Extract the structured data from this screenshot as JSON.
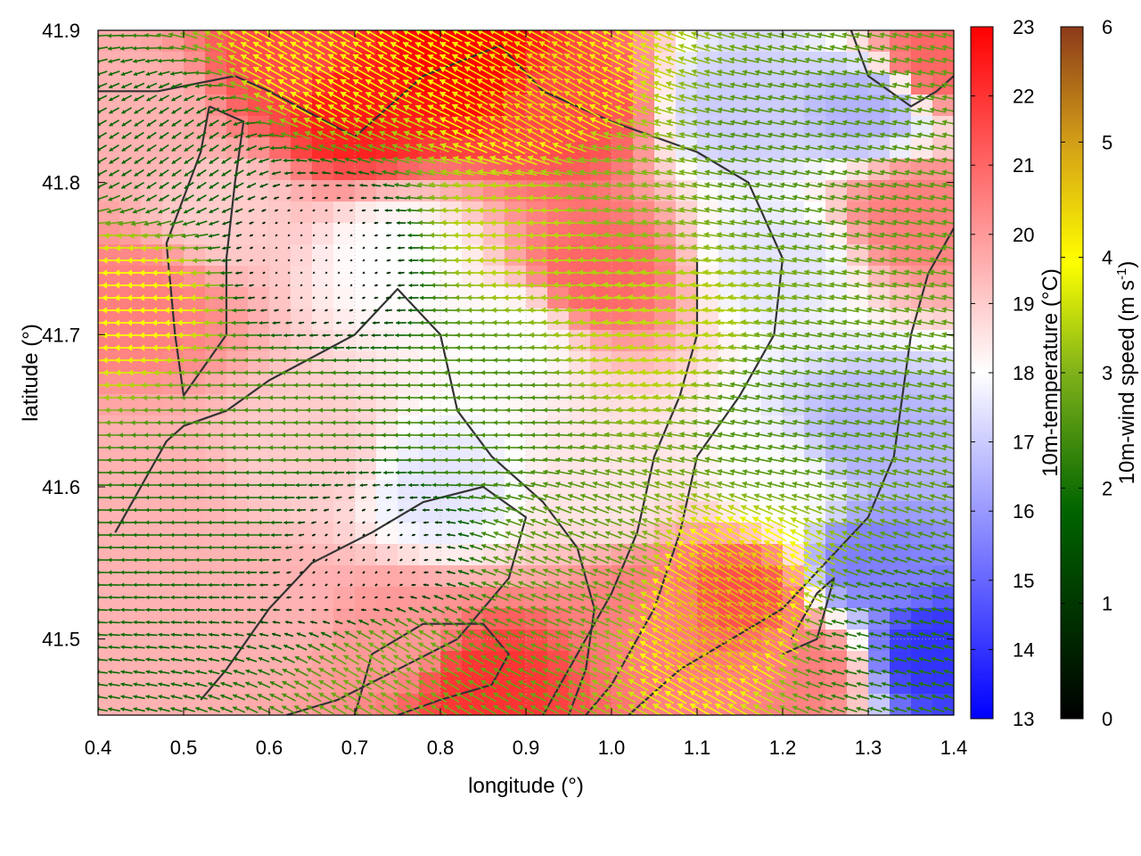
{
  "chart_data": {
    "type": "heatmap",
    "xlabel": "longitude (°)",
    "ylabel": "latitude (°)",
    "xlim": [
      0.4,
      1.4
    ],
    "ylim": [
      41.45,
      41.9
    ],
    "x_ticks": [
      "0.4",
      "0.5",
      "0.6",
      "0.7",
      "0.8",
      "0.9",
      "1.0",
      "1.1",
      "1.2",
      "1.3",
      "1.4"
    ],
    "y_ticks": [
      "41.5",
      "41.6",
      "41.7",
      "41.8",
      "41.9"
    ],
    "grid": true,
    "temperature_colorbar": {
      "label": "10m-temperature (°C)",
      "range": [
        13,
        23
      ],
      "ticks": [
        "13",
        "14",
        "15",
        "16",
        "17",
        "18",
        "19",
        "20",
        "21",
        "22",
        "23"
      ],
      "colors": [
        "#0000ff",
        "#ffffff",
        "#ff0000"
      ]
    },
    "wind_colorbar": {
      "label_main": "10m-wind speed (m s",
      "label_sup": "-1",
      "label_end": ")",
      "range": [
        0,
        6
      ],
      "ticks": [
        "0",
        "1",
        "2",
        "3",
        "4",
        "5",
        "6"
      ],
      "colors": [
        "#000000",
        "#006400",
        "#9acd32",
        "#ffff00",
        "#d4a017",
        "#8b3a1a"
      ]
    },
    "temperature_field_approx": [
      {
        "lon": 0.45,
        "lat": 41.85,
        "t": 19.5
      },
      {
        "lon": 0.62,
        "lat": 41.88,
        "t": 21.5
      },
      {
        "lon": 0.7,
        "lat": 41.85,
        "t": 22.5
      },
      {
        "lon": 0.83,
        "lat": 41.88,
        "t": 23.0
      },
      {
        "lon": 0.95,
        "lat": 41.85,
        "t": 21.5
      },
      {
        "lon": 1.15,
        "lat": 41.85,
        "t": 17.0
      },
      {
        "lon": 1.3,
        "lat": 41.85,
        "t": 16.5
      },
      {
        "lon": 1.38,
        "lat": 41.88,
        "t": 21.0
      },
      {
        "lon": 0.45,
        "lat": 41.72,
        "t": 20.5
      },
      {
        "lon": 0.55,
        "lat": 41.78,
        "t": 19.0
      },
      {
        "lon": 0.75,
        "lat": 41.75,
        "t": 18.0
      },
      {
        "lon": 0.98,
        "lat": 41.74,
        "t": 21.0
      },
      {
        "lon": 1.2,
        "lat": 41.75,
        "t": 17.5
      },
      {
        "lon": 1.35,
        "lat": 41.78,
        "t": 20.5
      },
      {
        "lon": 0.45,
        "lat": 41.6,
        "t": 19.5
      },
      {
        "lon": 0.65,
        "lat": 41.62,
        "t": 19.0
      },
      {
        "lon": 0.8,
        "lat": 41.6,
        "t": 17.5
      },
      {
        "lon": 1.0,
        "lat": 41.6,
        "t": 18.5
      },
      {
        "lon": 1.2,
        "lat": 41.6,
        "t": 18.0
      },
      {
        "lon": 1.3,
        "lat": 41.63,
        "t": 16.5
      },
      {
        "lon": 1.3,
        "lat": 41.55,
        "t": 15.5
      },
      {
        "lon": 0.45,
        "lat": 41.5,
        "t": 19.5
      },
      {
        "lon": 0.6,
        "lat": 41.52,
        "t": 19.5
      },
      {
        "lon": 0.75,
        "lat": 41.5,
        "t": 20.0
      },
      {
        "lon": 0.85,
        "lat": 41.47,
        "t": 22.0
      },
      {
        "lon": 1.05,
        "lat": 41.52,
        "t": 20.5
      },
      {
        "lon": 1.15,
        "lat": 41.53,
        "t": 21.5
      },
      {
        "lon": 1.22,
        "lat": 41.48,
        "t": 20.5
      },
      {
        "lon": 1.38,
        "lat": 41.49,
        "t": 14.0
      },
      {
        "lon": 0.88,
        "lat": 41.7,
        "t": 18.0
      }
    ],
    "wind_field_approx": [
      {
        "lon": 0.45,
        "lat": 41.72,
        "u": -4.0,
        "v": 0.0
      },
      {
        "lon": 0.5,
        "lat": 41.82,
        "u": -1.5,
        "v": -1.0
      },
      {
        "lon": 0.65,
        "lat": 41.88,
        "u": -3.5,
        "v": 2.0
      },
      {
        "lon": 0.92,
        "lat": 41.85,
        "u": -3.8,
        "v": 2.2
      },
      {
        "lon": 1.0,
        "lat": 41.8,
        "u": -3.0,
        "v": 0.5
      },
      {
        "lon": 1.2,
        "lat": 41.82,
        "u": -2.5,
        "v": 0.5
      },
      {
        "lon": 0.65,
        "lat": 41.75,
        "u": -0.2,
        "v": -0.2
      },
      {
        "lon": 0.9,
        "lat": 41.77,
        "u": -3.5,
        "v": 0.0
      },
      {
        "lon": 0.6,
        "lat": 41.65,
        "u": -2.5,
        "v": 0.0
      },
      {
        "lon": 0.85,
        "lat": 41.65,
        "u": -2.5,
        "v": 0.0
      },
      {
        "lon": 1.05,
        "lat": 41.7,
        "u": -3.5,
        "v": 0.3
      },
      {
        "lon": 1.2,
        "lat": 41.65,
        "u": -2.5,
        "v": 0.5
      },
      {
        "lon": 0.55,
        "lat": 41.58,
        "u": -2.0,
        "v": 0.0
      },
      {
        "lon": 0.7,
        "lat": 41.55,
        "u": -0.3,
        "v": -0.3
      },
      {
        "lon": 0.95,
        "lat": 41.55,
        "u": -2.5,
        "v": 1.0
      },
      {
        "lon": 1.15,
        "lat": 41.52,
        "u": -4.0,
        "v": 2.5
      },
      {
        "lon": 0.75,
        "lat": 41.48,
        "u": -2.5,
        "v": 1.5
      },
      {
        "lon": 1.3,
        "lat": 41.5,
        "u": -2.0,
        "v": 0.5
      }
    ]
  }
}
